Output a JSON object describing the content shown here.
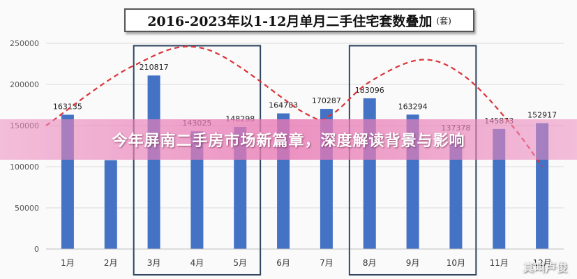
{
  "banner": {
    "headline": "今年屏南二手房市场新篇章，深度解读背景与影响"
  },
  "watermark": "真叫卢俊",
  "chart_data": {
    "type": "bar",
    "title": "2016-2023年以1-12月单月二手住宅套数叠加",
    "unit": "(套)",
    "categories": [
      "1月",
      "2月",
      "3月",
      "4月",
      "5月",
      "6月",
      "7月",
      "8月",
      "9月",
      "10月",
      "11月",
      "12月"
    ],
    "values": [
      163135,
      108000,
      210817,
      143025,
      148298,
      164783,
      170287,
      183096,
      163294,
      137378,
      145873,
      152917
    ],
    "data_labels": [
      "163135",
      "",
      "210817",
      "143025",
      "148298",
      "164783",
      "170287",
      "183096",
      "163294",
      "137378",
      "145873",
      "152917"
    ],
    "yticks": [
      "0",
      "50000",
      "100000",
      "150000",
      "200000",
      "250000"
    ],
    "ylim": [
      0,
      250000
    ],
    "trend": {
      "style": "dashed",
      "color": "#d9343a",
      "x": [
        0,
        1.5,
        3.2,
        5.5,
        6.1,
        7.0,
        8.2,
        9.2,
        10.3,
        11.0
      ],
      "y": [
        150000,
        222000,
        243000,
        165000,
        163000,
        203000,
        230000,
        210000,
        150000,
        100000
      ]
    },
    "highlight_groups": [
      [
        "3月",
        "5月"
      ],
      [
        "8月",
        "10月"
      ]
    ],
    "bar_color": "#4472c4",
    "grid": true
  }
}
